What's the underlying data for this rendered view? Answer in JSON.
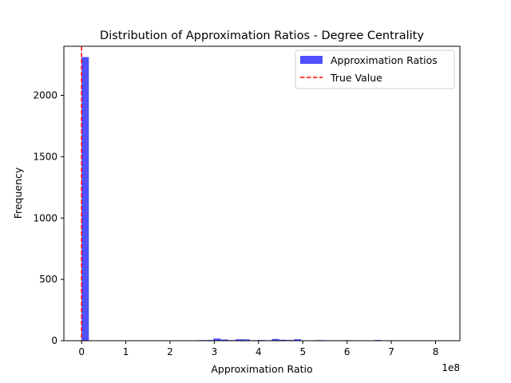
{
  "chart_data": {
    "type": "bar",
    "title": "Distribution of Approximation Ratios - Degree Centrality",
    "xlabel": "Approximation Ratio",
    "ylabel": "Frequency",
    "x_multiplier": "1e8",
    "xlim": [
      -0.4,
      8.55
    ],
    "ylim": [
      0,
      2400
    ],
    "x_ticks": [
      "0",
      "1",
      "2",
      "3",
      "4",
      "5",
      "6",
      "7",
      "8"
    ],
    "y_ticks": [
      "0",
      "500",
      "1000",
      "1500",
      "2000"
    ],
    "bin_width": 0.165,
    "bins": [
      {
        "x": 0.0,
        "count": 2312
      },
      {
        "x": 2.65,
        "count": 5
      },
      {
        "x": 2.82,
        "count": 6
      },
      {
        "x": 2.98,
        "count": 18
      },
      {
        "x": 3.15,
        "count": 10
      },
      {
        "x": 3.31,
        "count": 5
      },
      {
        "x": 3.48,
        "count": 12
      },
      {
        "x": 3.64,
        "count": 11
      },
      {
        "x": 3.81,
        "count": 4
      },
      {
        "x": 3.97,
        "count": 6
      },
      {
        "x": 4.14,
        "count": 4
      },
      {
        "x": 4.3,
        "count": 14
      },
      {
        "x": 4.47,
        "count": 8
      },
      {
        "x": 4.63,
        "count": 6
      },
      {
        "x": 4.8,
        "count": 12
      },
      {
        "x": 5.29,
        "count": 5
      },
      {
        "x": 5.46,
        "count": 4
      },
      {
        "x": 5.79,
        "count": 4
      },
      {
        "x": 5.95,
        "count": 4
      },
      {
        "x": 6.61,
        "count": 6
      }
    ],
    "true_value": 0.0,
    "series": [
      {
        "name": "Approximation Ratios",
        "color": "#4d4dff"
      },
      {
        "name": "True Value",
        "color": "#ff0000"
      }
    ],
    "legend_position": "top-right",
    "grid": false
  }
}
